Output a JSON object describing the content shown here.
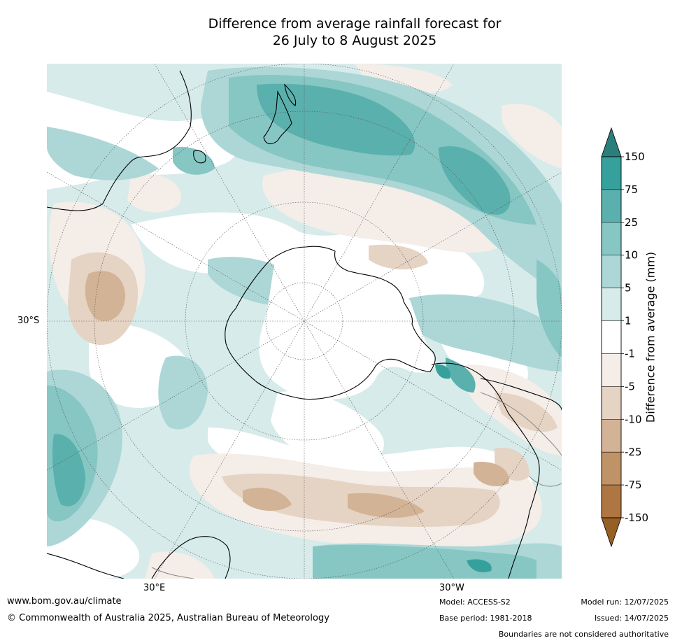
{
  "title": {
    "line1": "Difference from average rainfall forecast for",
    "line2": "26 July to 8 August 2025"
  },
  "map": {
    "projection": "south-polar stereographic",
    "lat_label": "30°S",
    "lon_labels": [
      "30°E",
      "30°W"
    ],
    "colors": {
      "wet_150": "#2a7f7b",
      "wet_75": "#36a19c",
      "wet_25": "#5ab0ad",
      "wet_10": "#86c6c3",
      "wet_5": "#acd7d6",
      "wet_1": "#d6ebea",
      "neutral": "#ffffff",
      "dry_1": "#f4ede8",
      "dry_5": "#e5d3c4",
      "dry_10": "#d3b395",
      "dry_25": "#c09267",
      "dry_75": "#ae7642",
      "dry_150": "#965f23"
    }
  },
  "colorbar": {
    "label": "Difference from average (mm)",
    "ticks": [
      "150",
      "75",
      "25",
      "10",
      "5",
      "1",
      "-1",
      "-5",
      "-10",
      "-25",
      "-75",
      "-150"
    ],
    "bin_colors": [
      "#36a19c",
      "#5ab0ad",
      "#86c6c3",
      "#acd7d6",
      "#d6ebea",
      "#ffffff",
      "#f4ede8",
      "#e5d3c4",
      "#d3b395",
      "#c09267",
      "#ae7642"
    ],
    "top_arrow_color": "#2a7f7b",
    "bottom_arrow_color": "#965f23"
  },
  "footer": {
    "website": "www.bom.gov.au/climate",
    "copyright": "© Commonwealth of Australia 2025, Australian Bureau of Meteorology",
    "model": "Model: ACCESS-S2",
    "base_period": "Base period: 1981-2018",
    "model_run": "Model run: 12/07/2025",
    "issued": "Issued: 14/07/2025",
    "disclaimer": "Boundaries are not considered authoritative"
  }
}
